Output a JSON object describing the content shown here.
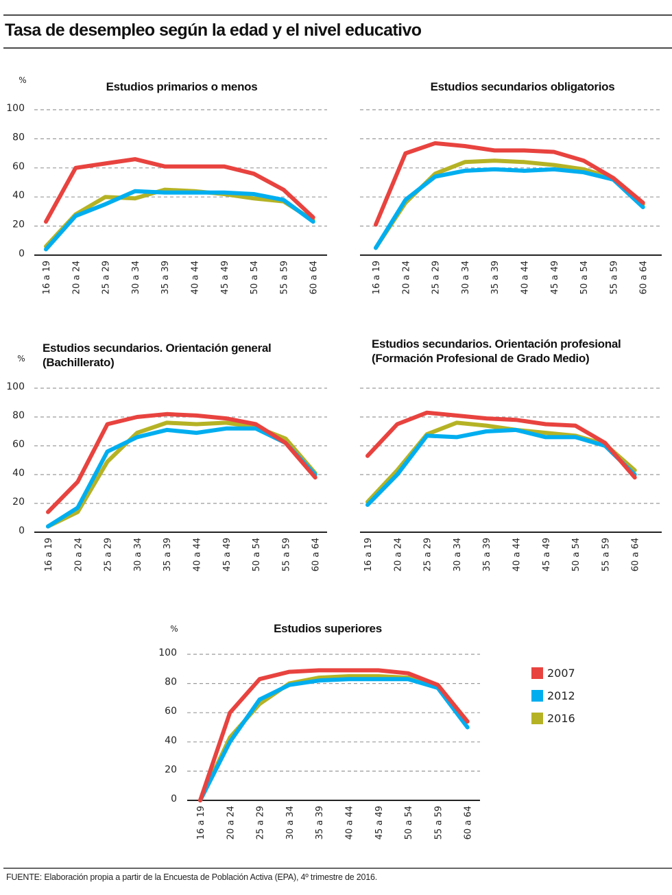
{
  "header": {
    "title": "Tasa de desempleo según la edad y el nivel educativo"
  },
  "legend": [
    {
      "label": "2007",
      "color": "#e8433f"
    },
    {
      "label": "2012",
      "color": "#00aeef"
    },
    {
      "label": "2016",
      "color": "#b5b325"
    }
  ],
  "footer": {
    "source": "FUENTE: Elaboración propia a partir de la Encuesta de Población Activa (EPA), 4º trimestre de 2016."
  },
  "chart_data": [
    {
      "type": "line",
      "title": [
        "Estudios primarios o menos"
      ],
      "ylabel": "%",
      "show_y_ticks": true,
      "ylim": [
        0,
        100
      ],
      "yticks": [
        "0",
        "20",
        "40",
        "60",
        "80",
        "100"
      ],
      "grid": true,
      "categories": [
        "16 a 19",
        "20 a 24",
        "25 a 29",
        "30 a 34",
        "35 a 39",
        "40 a 44",
        "45 a 49",
        "50 a 54",
        "55 a 59",
        "60 a 64"
      ],
      "series": [
        {
          "name": "2007",
          "values": [
            23,
            60,
            63,
            66,
            61,
            61,
            61,
            56,
            45,
            26
          ]
        },
        {
          "name": "2012",
          "values": [
            4,
            27,
            35,
            44,
            43,
            43,
            43,
            42,
            38,
            23
          ]
        },
        {
          "name": "2016",
          "values": [
            6,
            28,
            40,
            39,
            45,
            44,
            42,
            39,
            37,
            24
          ]
        }
      ]
    },
    {
      "type": "line",
      "title": [
        "Estudios secundarios obligatorios"
      ],
      "ylabel": "",
      "show_y_ticks": false,
      "ylim": [
        0,
        100
      ],
      "yticks": [
        "0",
        "20",
        "40",
        "60",
        "80",
        "100"
      ],
      "grid": true,
      "categories": [
        "16 a 19",
        "20 a 24",
        "25 a 29",
        "30 a 34",
        "35 a 39",
        "40 a 44",
        "45 a 49",
        "50 a 54",
        "55 a 59",
        "60 a 64"
      ],
      "series": [
        {
          "name": "2007",
          "values": [
            21,
            70,
            77,
            75,
            72,
            72,
            71,
            65,
            53,
            36
          ]
        },
        {
          "name": "2012",
          "values": [
            5,
            38,
            54,
            58,
            59,
            58,
            59,
            57,
            52,
            33
          ]
        },
        {
          "name": "2016",
          "values": [
            5,
            36,
            56,
            64,
            65,
            64,
            62,
            59,
            53,
            35
          ]
        }
      ]
    },
    {
      "type": "line",
      "title": [
        "Estudios secundarios. Orientación general",
        "(Bachillerato)"
      ],
      "ylabel": "%",
      "show_y_ticks": true,
      "ylim": [
        0,
        100
      ],
      "yticks": [
        "0",
        "20",
        "40",
        "60",
        "80",
        "100"
      ],
      "grid": true,
      "categories": [
        "16 a 19",
        "20 a 24",
        "25 a 29",
        "30 a 34",
        "35 a 39",
        "40 a 44",
        "45 a 49",
        "50 a 54",
        "55 a 59",
        "60 a 64"
      ],
      "series": [
        {
          "name": "2007",
          "values": [
            14,
            35,
            75,
            80,
            82,
            81,
            79,
            75,
            62,
            38
          ]
        },
        {
          "name": "2012",
          "values": [
            4,
            17,
            56,
            66,
            71,
            69,
            72,
            72,
            62,
            40
          ]
        },
        {
          "name": "2016",
          "values": [
            4,
            14,
            49,
            69,
            76,
            75,
            76,
            73,
            65,
            41
          ]
        }
      ]
    },
    {
      "type": "line",
      "title": [
        "Estudios secundarios. Orientación profesional",
        "(Formación Profesional de Grado Medio)"
      ],
      "ylabel": "",
      "show_y_ticks": false,
      "ylim": [
        0,
        100
      ],
      "yticks": [
        "0",
        "20",
        "40",
        "60",
        "80",
        "100"
      ],
      "grid": true,
      "categories": [
        "16 a 19",
        "20 a 24",
        "25 a 29",
        "30 a 34",
        "35 a 39",
        "40 a 44",
        "45 a 49",
        "50 a 54",
        "55 a 59",
        "60 a 64"
      ],
      "series": [
        {
          "name": "2007",
          "values": [
            53,
            75,
            83,
            81,
            79,
            78,
            75,
            74,
            62,
            38
          ]
        },
        {
          "name": "2012",
          "values": [
            19,
            40,
            67,
            66,
            70,
            71,
            66,
            66,
            60,
            40
          ]
        },
        {
          "name": "2016",
          "values": [
            21,
            43,
            68,
            76,
            74,
            71,
            69,
            67,
            61,
            43
          ]
        }
      ]
    },
    {
      "type": "line",
      "title": [
        "Estudios superiores"
      ],
      "ylabel": "%",
      "show_y_ticks": true,
      "ylim": [
        0,
        100
      ],
      "yticks": [
        "0",
        "20",
        "40",
        "60",
        "80",
        "100"
      ],
      "grid": true,
      "categories": [
        "16 a 19",
        "20 a 24",
        "25 a 29",
        "30 a 34",
        "35 a 39",
        "40 a 44",
        "45 a 49",
        "50 a 54",
        "55 a 59",
        "60 a 64"
      ],
      "series": [
        {
          "name": "2007",
          "values": [
            0,
            60,
            83,
            88,
            89,
            89,
            89,
            87,
            79,
            54
          ]
        },
        {
          "name": "2012",
          "values": [
            0,
            40,
            69,
            79,
            82,
            83,
            83,
            83,
            77,
            50
          ]
        },
        {
          "name": "2016",
          "values": [
            0,
            43,
            66,
            80,
            84,
            85,
            85,
            84,
            79,
            54
          ]
        }
      ]
    }
  ]
}
